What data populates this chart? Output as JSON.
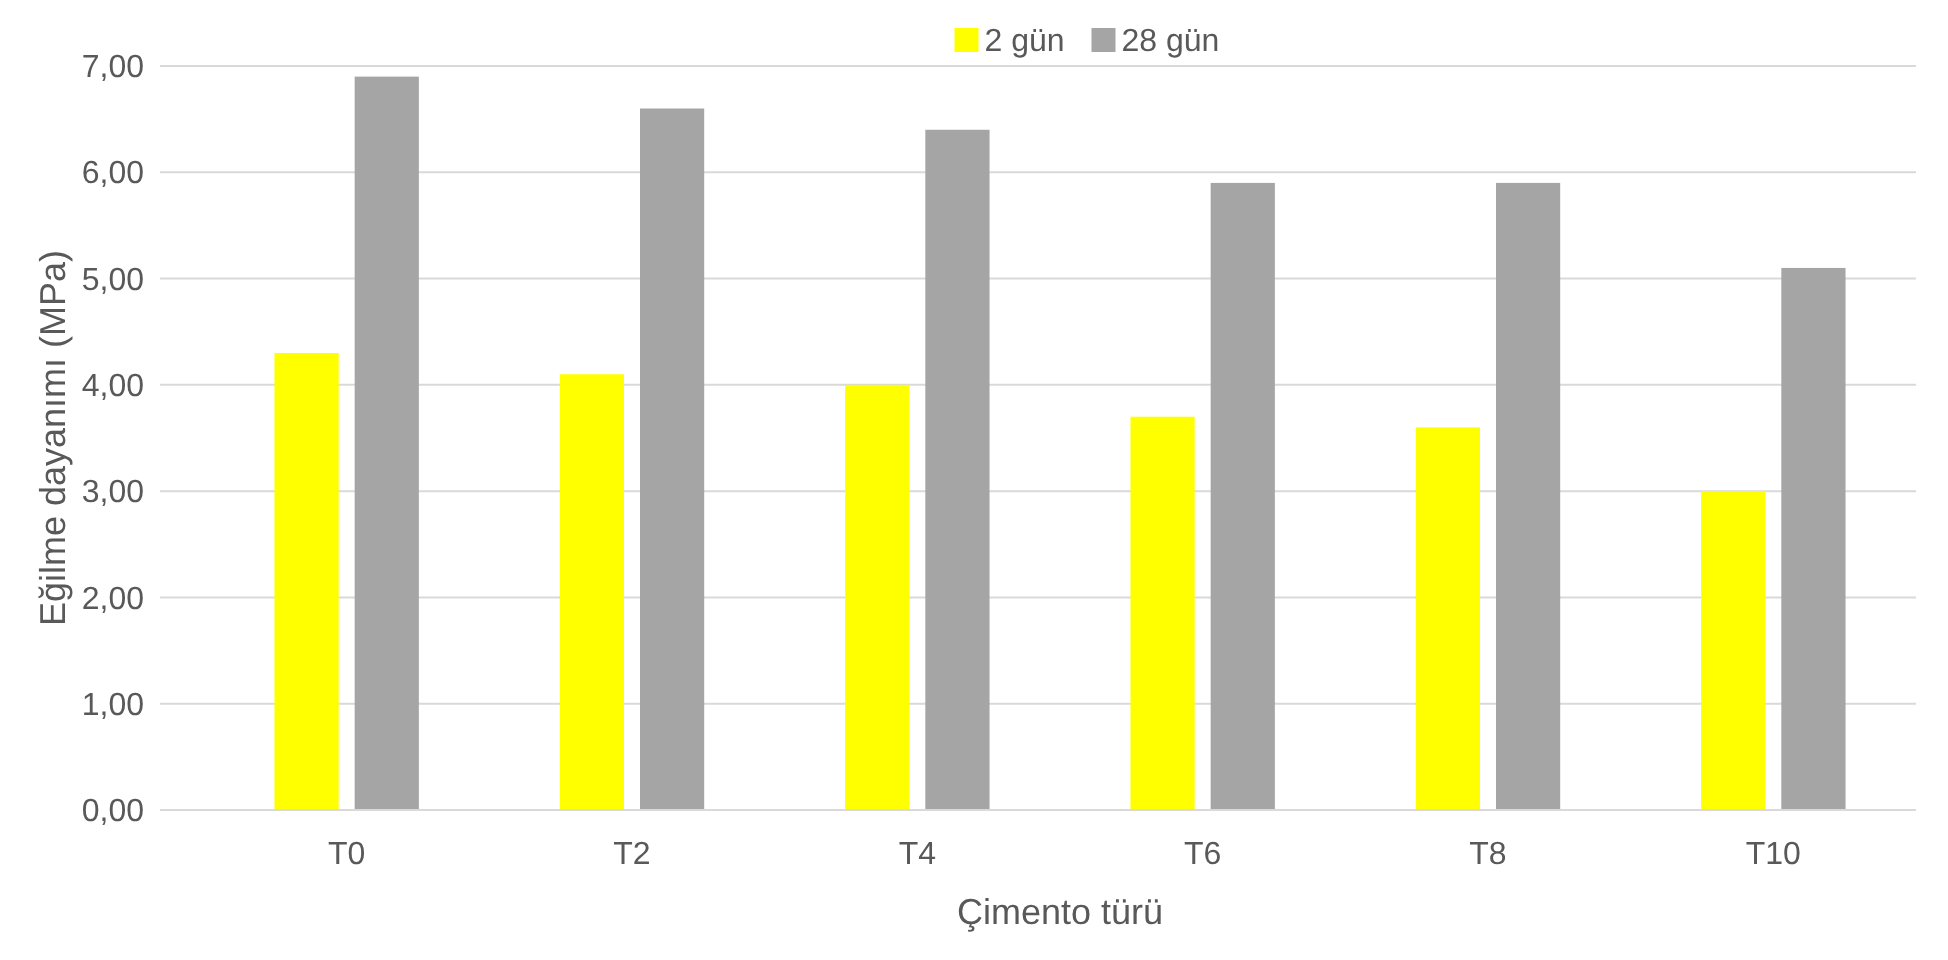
{
  "chart_data": {
    "type": "bar",
    "xlabel": "Çimento türü",
    "ylabel": "Eğilme dayanımı (MPa)",
    "categories": [
      "T0",
      "T2",
      "T4",
      "T6",
      "T8",
      "T10"
    ],
    "series": [
      {
        "name": "2 gün",
        "color": "#ffff00",
        "values": [
          4.3,
          4.1,
          4.0,
          3.7,
          3.6,
          3.0
        ]
      },
      {
        "name": "28 gün",
        "color": "#a5a5a5",
        "values": [
          6.9,
          6.6,
          6.4,
          5.9,
          5.9,
          5.1
        ]
      }
    ],
    "ylim": [
      0,
      7
    ],
    "yticks": [
      {
        "value": 0,
        "label": "0,00"
      },
      {
        "value": 1,
        "label": "1,00"
      },
      {
        "value": 2,
        "label": "2,00"
      },
      {
        "value": 3,
        "label": "3,00"
      },
      {
        "value": 4,
        "label": "4,00"
      },
      {
        "value": 5,
        "label": "5,00"
      },
      {
        "value": 6,
        "label": "6,00"
      },
      {
        "value": 7,
        "label": "7,00"
      }
    ],
    "grid": "y",
    "legend": "top"
  }
}
